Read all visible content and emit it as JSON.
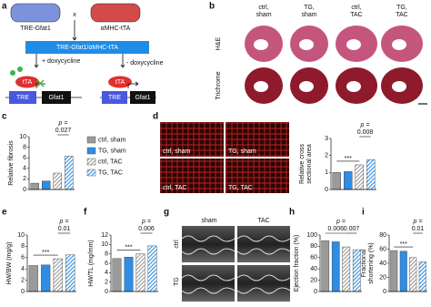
{
  "panel_labels": [
    "a",
    "b",
    "c",
    "d",
    "e",
    "f",
    "g",
    "h",
    "i"
  ],
  "a": {
    "mouse_left": "TRE-Gfat1",
    "cross": "x",
    "mouse_right": "αMHC-tTA",
    "cross_box": "TRE-Gfat1/αMHC-tTA",
    "plus_dox": "+ doxycycline",
    "minus_dox": "- doxycycline",
    "tta": "tTA",
    "tre": "TRE",
    "gene": "Gfat1"
  },
  "b": {
    "columns": [
      [
        "ctrl,",
        "sham"
      ],
      [
        "TG,",
        "sham"
      ],
      [
        "ctrl,",
        "TAC"
      ],
      [
        "TG,",
        "TAC"
      ]
    ],
    "rows": [
      "H&E",
      "Trichrome"
    ]
  },
  "d_images": [
    "ctrl, sham",
    "TG, sham",
    "ctrl, TAC",
    "TG, TAC"
  ],
  "g": {
    "columns": [
      "sham",
      "TAC"
    ],
    "rows": [
      "ctrl",
      "TG"
    ]
  },
  "legend": [
    {
      "name": "ctrl, sham",
      "color": "#9a9a9a",
      "hatch": false
    },
    {
      "name": "TG, sham",
      "color": "#2f8de4",
      "hatch": false
    },
    {
      "name": "ctrl, TAC",
      "color": "#9a9a9a",
      "hatch": true
    },
    {
      "name": "TG, TAC",
      "color": "#2f8de4",
      "hatch": true
    }
  ],
  "chart_data": [
    {
      "type": "bar",
      "ylabel": [
        "Relative fibrosis"
      ],
      "ylim": [
        0,
        10
      ],
      "yticks": [
        0,
        2,
        4,
        6,
        8,
        10
      ],
      "values": [
        1.2,
        1.6,
        3.1,
        6.3
      ],
      "p_label": "p =",
      "p_values": [
        "0.027"
      ]
    },
    {
      "type": "bar",
      "ylabel": [
        "Relative cross",
        "sectional area"
      ],
      "ylim": [
        0,
        3
      ],
      "yticks": [
        0,
        1,
        2,
        3
      ],
      "values": [
        1.0,
        1.05,
        1.45,
        1.75
      ],
      "stars": "***",
      "p_label": "p =",
      "p_values": [
        "0.008"
      ]
    },
    {
      "type": "bar",
      "ylabel": [
        "HW/BW (mg/g)"
      ],
      "ylim": [
        0,
        10
      ],
      "yticks": [
        0,
        2,
        4,
        6,
        8,
        10
      ],
      "values": [
        4.6,
        4.7,
        5.8,
        6.5
      ],
      "stars": "***",
      "p_label": "p =",
      "p_values": [
        "0.01"
      ]
    },
    {
      "type": "bar",
      "ylabel": [
        "HW/TL (mg/mm)"
      ],
      "ylim": [
        0,
        12
      ],
      "yticks": [
        0,
        2,
        4,
        6,
        8,
        10,
        12
      ],
      "values": [
        7.0,
        7.3,
        8.0,
        9.7
      ],
      "stars": "***",
      "p_label": "p =",
      "p_values": [
        "0.006"
      ]
    },
    {
      "type": "bar",
      "ylabel": [
        "Ejection fraction (%)"
      ],
      "ylim": [
        0,
        100
      ],
      "yticks": [
        0,
        20,
        40,
        60,
        80,
        100
      ],
      "values": [
        90,
        88,
        79,
        74
      ],
      "p_label": "p =",
      "p_values": [
        "0.006",
        "0.007"
      ]
    },
    {
      "type": "bar",
      "ylabel": [
        "Fractional",
        "shortening (%)"
      ],
      "ylim": [
        0,
        80
      ],
      "yticks": [
        0,
        20,
        40,
        60,
        80
      ],
      "values": [
        58,
        57,
        48,
        42
      ],
      "stars": "***",
      "p_label": "p =",
      "p_values": [
        "0.01"
      ]
    }
  ]
}
